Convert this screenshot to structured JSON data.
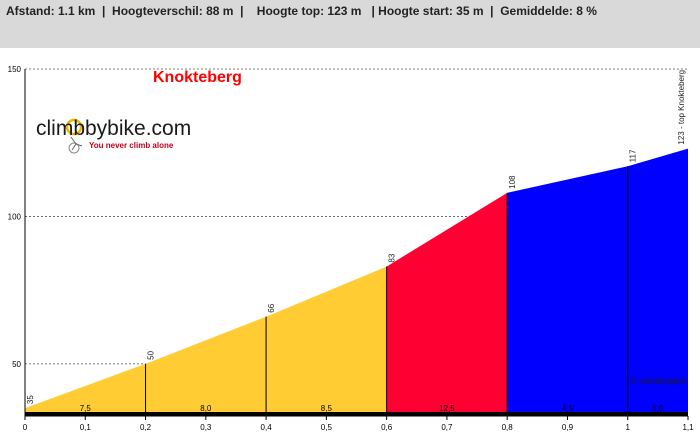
{
  "header": {
    "stats": "Afstand: 1.1 km  |  Hoogteverschil: 88 m  |    Hoogte top: 123 m   | Hoogte start: 35 m  |  Gemiddelde: 8 %"
  },
  "brand": {
    "name": "climbbybike.com",
    "tagline": "You never climb alone",
    "watermark": "© climbbybike"
  },
  "colors": {
    "yellow": "#ffcc33",
    "red": "#ff0033",
    "blue": "#0000ff",
    "title": "#ff0000"
  },
  "chart_data": {
    "type": "area",
    "title": "Knokteberg",
    "xlabel": "",
    "ylabel": "",
    "xlim": [
      0,
      1.1
    ],
    "ylim": [
      33,
      150
    ],
    "x_ticks": [
      "0",
      "0,1",
      "0,2",
      "0,3",
      "0,4",
      "0,5",
      "0,6",
      "0,7",
      "0,8",
      "0,9",
      "1",
      "1,1"
    ],
    "x_tick_values": [
      0,
      0.1,
      0.2,
      0.3,
      0.4,
      0.5,
      0.6,
      0.7,
      0.8,
      0.9,
      1.0,
      1.1
    ],
    "y_ticks": [
      50,
      100,
      150
    ],
    "grid": "dashed horizontal",
    "profile": [
      {
        "x": 0,
        "y": 35
      },
      {
        "x": 0.2,
        "y": 50
      },
      {
        "x": 0.4,
        "y": 66
      },
      {
        "x": 0.6,
        "y": 83
      },
      {
        "x": 0.8,
        "y": 108
      },
      {
        "x": 1.0,
        "y": 117
      },
      {
        "x": 1.1,
        "y": 123
      }
    ],
    "point_labels": [
      "35",
      "50",
      "66",
      "83",
      "108",
      "117",
      "123 - top Knokteberg"
    ],
    "segments": [
      {
        "from": 0,
        "to": 0.2,
        "gradient": "7,5",
        "color": "#ffcc33"
      },
      {
        "from": 0.2,
        "to": 0.4,
        "gradient": "8,0",
        "color": "#ffcc33"
      },
      {
        "from": 0.4,
        "to": 0.6,
        "gradient": "8,5",
        "color": "#ffcc33"
      },
      {
        "from": 0.6,
        "to": 0.8,
        "gradient": "12,5",
        "color": "#ff0033"
      },
      {
        "from": 0.8,
        "to": 1.0,
        "gradient": "4,5",
        "color": "#0000ff"
      },
      {
        "from": 1.0,
        "to": 1.1,
        "gradient": "6,0",
        "color": "#0000ff"
      }
    ]
  }
}
